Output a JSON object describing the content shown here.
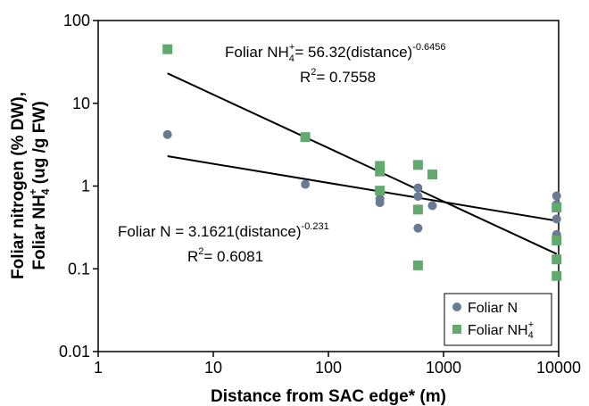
{
  "chart_data": {
    "type": "scatter",
    "x_scale": "log",
    "y_scale": "log",
    "xlim": [
      1,
      10000
    ],
    "ylim": [
      0.01,
      100
    ],
    "x_ticks": [
      {
        "value": 1,
        "label": "1"
      },
      {
        "value": 10,
        "label": "10"
      },
      {
        "value": 100,
        "label": "100"
      },
      {
        "value": 1000,
        "label": "1000"
      },
      {
        "value": 10000,
        "label": "10000"
      }
    ],
    "y_ticks": [
      {
        "value": 0.01,
        "label": "0.01"
      },
      {
        "value": 0.1,
        "label": "0.1"
      },
      {
        "value": 1,
        "label": "1"
      },
      {
        "value": 10,
        "label": "10"
      },
      {
        "value": 100,
        "label": "100"
      }
    ],
    "xlabel": "Distance from SAC edge* (m)",
    "ylabel": {
      "line1": "Foliar nitrogen (% DW),",
      "line2_prefix": "Foliar NH",
      "line2_sub": "4",
      "line2_sup": "+",
      "line2_suffix": " (ug /g FW)"
    },
    "grid": false,
    "legend_position": "bottom-right",
    "series": [
      {
        "name": "Foliar N",
        "legend_parts": {
          "text": "Foliar N",
          "sub": "",
          "sup": ""
        },
        "marker": "circle",
        "color": "#6b7a94",
        "points": [
          {
            "x": 4,
            "y": 4.2
          },
          {
            "x": 63,
            "y": 1.05
          },
          {
            "x": 280,
            "y": 0.63
          },
          {
            "x": 280,
            "y": 0.7
          },
          {
            "x": 600,
            "y": 0.95
          },
          {
            "x": 600,
            "y": 0.75
          },
          {
            "x": 600,
            "y": 0.31
          },
          {
            "x": 800,
            "y": 0.58
          },
          {
            "x": 9600,
            "y": 0.76
          },
          {
            "x": 9600,
            "y": 0.6
          },
          {
            "x": 9600,
            "y": 0.4
          },
          {
            "x": 9600,
            "y": 0.26
          }
        ],
        "fit": {
          "a": 3.1621,
          "b": -0.231,
          "x_range": [
            4,
            9600
          ]
        },
        "equation": {
          "prefix": "Foliar N = 3.1621(distance)",
          "exponent": "-0.231"
        },
        "r2": {
          "prefix": "R",
          "sup": "2",
          "suffix": "= 0.6081"
        }
      },
      {
        "name": "Foliar NH4+",
        "legend_parts": {
          "text": "Foliar NH",
          "sub": "4",
          "sup": "+"
        },
        "marker": "square",
        "color": "#62a86f",
        "points": [
          {
            "x": 4,
            "y": 45
          },
          {
            "x": 63,
            "y": 3.9
          },
          {
            "x": 280,
            "y": 1.75
          },
          {
            "x": 280,
            "y": 1.5
          },
          {
            "x": 280,
            "y": 0.88
          },
          {
            "x": 600,
            "y": 1.8
          },
          {
            "x": 600,
            "y": 0.52
          },
          {
            "x": 600,
            "y": 0.11
          },
          {
            "x": 800,
            "y": 1.38
          },
          {
            "x": 9600,
            "y": 0.55
          },
          {
            "x": 9600,
            "y": 0.22
          },
          {
            "x": 9600,
            "y": 0.13
          },
          {
            "x": 9600,
            "y": 0.082
          }
        ],
        "fit": {
          "a": 56.32,
          "b": -0.6456,
          "x_range": [
            4,
            9600
          ]
        },
        "equation": {
          "prefix": "Foliar NH",
          "sub": "4",
          "sup": "+",
          "mid": "= 56.32(distance)",
          "exponent": "-0.6456"
        },
        "r2": {
          "prefix": "R",
          "sup": "2",
          "suffix": "= 0.7558"
        }
      }
    ]
  }
}
